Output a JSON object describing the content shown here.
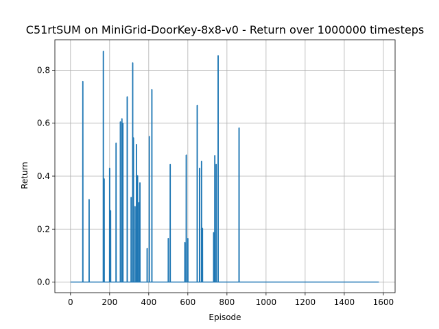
{
  "chart_data": {
    "type": "line",
    "title": "C51rtSUM on MiniGrid-DoorKey-8x8-v0 - Return over 1000000 timesteps",
    "xlabel": "Episode",
    "ylabel": "Return",
    "xlim": [
      -80,
      1660
    ],
    "ylim": [
      -0.04,
      0.915
    ],
    "xticks": [
      0,
      200,
      400,
      600,
      800,
      1000,
      1200,
      1400,
      1600
    ],
    "yticks": [
      0.0,
      0.2,
      0.4,
      0.6,
      0.8
    ],
    "ytick_labels": [
      "0.0",
      "0.2",
      "0.4",
      "0.6",
      "0.8"
    ],
    "grid": true,
    "color": "#1f77b4",
    "spikes": [
      {
        "x": 63,
        "y": 0.758
      },
      {
        "x": 95,
        "y": 0.312
      },
      {
        "x": 168,
        "y": 0.872
      },
      {
        "x": 172,
        "y": 0.39
      },
      {
        "x": 200,
        "y": 0.43
      },
      {
        "x": 205,
        "y": 0.27
      },
      {
        "x": 233,
        "y": 0.525
      },
      {
        "x": 255,
        "y": 0.605
      },
      {
        "x": 263,
        "y": 0.617
      },
      {
        "x": 268,
        "y": 0.6
      },
      {
        "x": 290,
        "y": 0.7
      },
      {
        "x": 310,
        "y": 0.32
      },
      {
        "x": 318,
        "y": 0.828
      },
      {
        "x": 322,
        "y": 0.545
      },
      {
        "x": 330,
        "y": 0.285
      },
      {
        "x": 337,
        "y": 0.52
      },
      {
        "x": 343,
        "y": 0.402
      },
      {
        "x": 350,
        "y": 0.3
      },
      {
        "x": 355,
        "y": 0.375
      },
      {
        "x": 392,
        "y": 0.127
      },
      {
        "x": 403,
        "y": 0.55
      },
      {
        "x": 416,
        "y": 0.727
      },
      {
        "x": 500,
        "y": 0.165
      },
      {
        "x": 510,
        "y": 0.445
      },
      {
        "x": 585,
        "y": 0.15
      },
      {
        "x": 592,
        "y": 0.48
      },
      {
        "x": 600,
        "y": 0.165
      },
      {
        "x": 648,
        "y": 0.668
      },
      {
        "x": 660,
        "y": 0.43
      },
      {
        "x": 670,
        "y": 0.456
      },
      {
        "x": 675,
        "y": 0.203
      },
      {
        "x": 732,
        "y": 0.187
      },
      {
        "x": 738,
        "y": 0.478
      },
      {
        "x": 745,
        "y": 0.445
      },
      {
        "x": 755,
        "y": 0.855
      },
      {
        "x": 862,
        "y": 0.582
      }
    ],
    "x_range": [
      0,
      1577
    ],
    "baseline": 0.0
  }
}
